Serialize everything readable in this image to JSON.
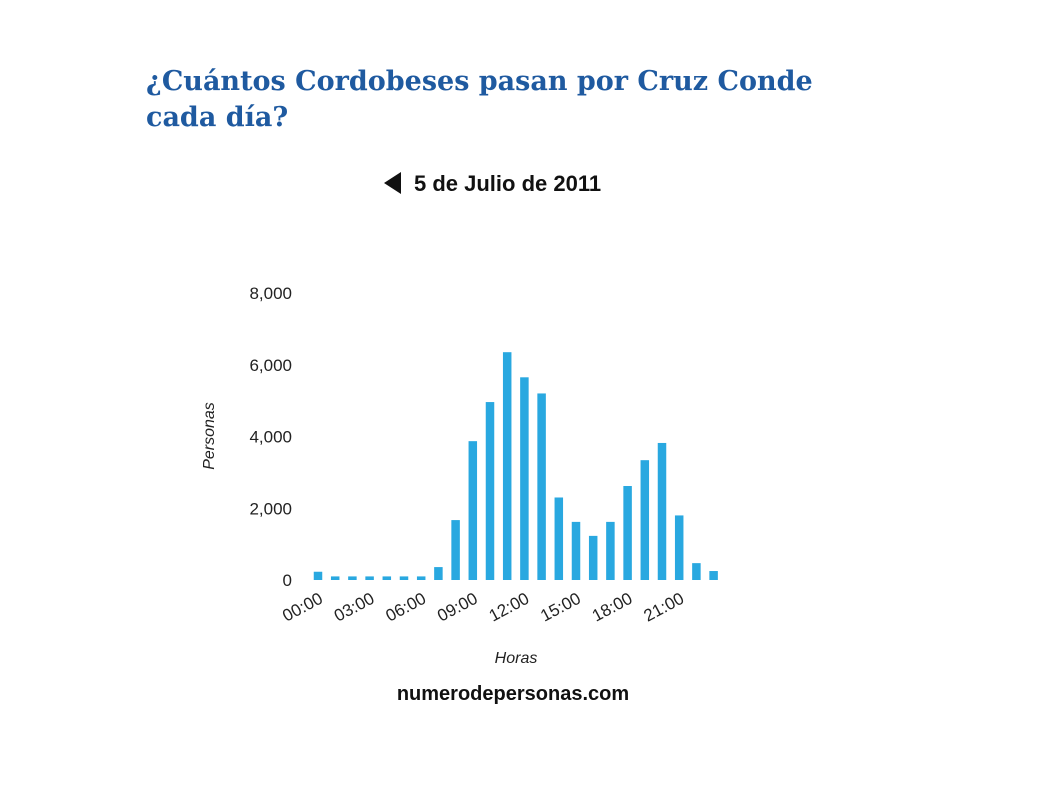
{
  "chart_data": {
    "type": "bar",
    "title": "¿Cuántos Cordobeses pasan por Cruz Conde",
    "title_line2": "cada día?",
    "subtitle": "5 de Julio de 2011",
    "categories": [
      "00:00",
      null,
      null,
      "03:00",
      null,
      null,
      "06:00",
      null,
      null,
      "09:00",
      null,
      null,
      "12:00",
      null,
      null,
      "15:00",
      null,
      null,
      "18:00",
      null,
      null,
      "21:00",
      null,
      null
    ],
    "values": [
      230,
      100,
      100,
      100,
      100,
      100,
      100,
      360,
      1670,
      3870,
      4960,
      6350,
      5650,
      5200,
      2300,
      1620,
      1230,
      1620,
      2620,
      3340,
      3820,
      1800,
      470,
      250
    ],
    "color": "#29a8e0",
    "ylim": [
      0,
      8000
    ],
    "yticks": [
      0,
      {
        "value": 2000,
        "label": "2,000"
      },
      {
        "value": 4000,
        "label": "4,000"
      },
      {
        "value": 6000,
        "label": "6,000"
      },
      {
        "value": 8000,
        "label": "8,000"
      }
    ],
    "xlabel": "Horas",
    "ylabel": "Personas",
    "source": "numerodepersonas.com",
    "grid": false
  }
}
